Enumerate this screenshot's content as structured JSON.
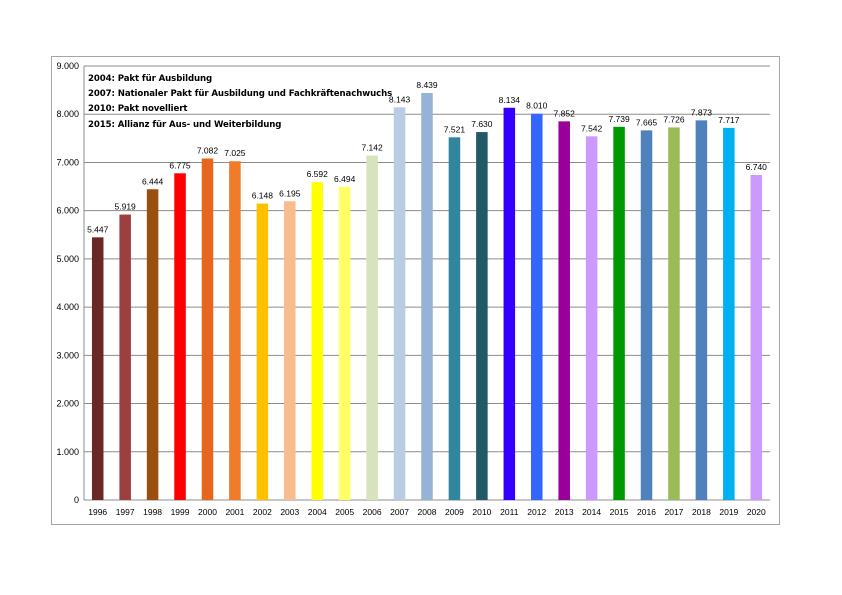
{
  "chart_data": {
    "type": "bar",
    "title": "",
    "xlabel": "",
    "ylabel": "",
    "ylim": [
      0,
      9000
    ],
    "y_ticks": [
      "0",
      "1.000",
      "2.000",
      "3.000",
      "4.000",
      "5.000",
      "6.000",
      "7.000",
      "8.000",
      "9.000"
    ],
    "grid": true,
    "categories": [
      "1996",
      "1997",
      "1998",
      "1999",
      "2000",
      "2001",
      "2002",
      "2003",
      "2004",
      "2005",
      "2006",
      "2007",
      "2008",
      "2009",
      "2010",
      "2011",
      "2012",
      "2013",
      "2014",
      "2015",
      "2016",
      "2017",
      "2018",
      "2019",
      "2020"
    ],
    "values": [
      5447,
      5919,
      6444,
      6775,
      7082,
      7025,
      6148,
      6195,
      6592,
      6494,
      7142,
      8143,
      8439,
      7521,
      7630,
      8134,
      8010,
      7852,
      7542,
      7739,
      7665,
      7726,
      7873,
      7717,
      6740
    ],
    "value_labels": [
      "5.447",
      "5.919",
      "6.444",
      "6.775",
      "7.082",
      "7.025",
      "6.148",
      "6.195",
      "6.592",
      "6.494",
      "7.142",
      "8.143",
      "8.439",
      "7.521",
      "7.630",
      "8.134",
      "8.010",
      "7.852",
      "7.542",
      "7.739",
      "7.665",
      "7.726",
      "7.873",
      "7.717",
      "6.740"
    ],
    "bar_colors": [
      "#6b2626",
      "#9c3f3f",
      "#9a4f10",
      "#ff0000",
      "#e8661c",
      "#f07c2a",
      "#ffc000",
      "#f8bc8e",
      "#ffff00",
      "#ffff66",
      "#d6e3bc",
      "#b8cce4",
      "#95b3d7",
      "#31859c",
      "#215967",
      "#3300ff",
      "#3366ff",
      "#990099",
      "#cc99ff",
      "#009900",
      "#4f81bd",
      "#9bbb59",
      "#4f81bd",
      "#00b0f0",
      "#cc99ff"
    ],
    "annotations": [
      "2004: Pakt für Ausbildung",
      "2007: Nationaler Pakt für Ausbildung und Fachkräftenachwuchs",
      "2010: Pakt novelliert",
      "2015: Allianz für Aus- und Weiterbildung"
    ]
  }
}
